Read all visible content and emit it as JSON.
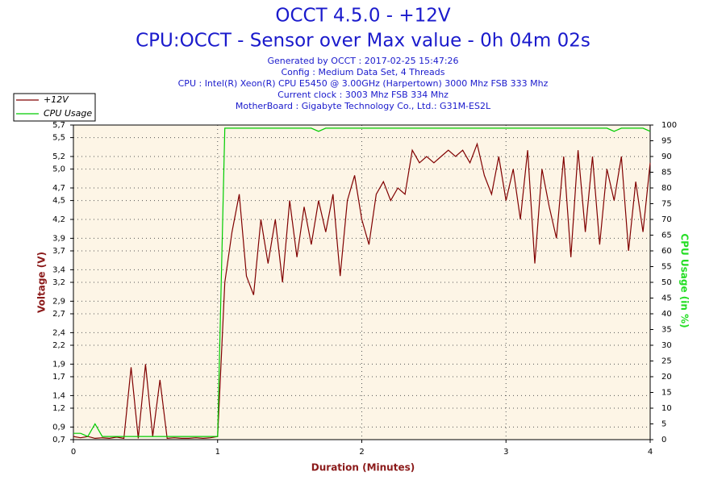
{
  "chart_data": {
    "type": "line",
    "title": "OCCT 4.5.0 - +12V",
    "subtitle": "CPU:OCCT - Sensor over Max value - 0h 04m 02s",
    "notes": [
      "Generated by OCCT : 2017-02-25 15:47:26",
      "Config : Medium Data Set, 4 Threads",
      "CPU : Intel(R) Xeon(R) CPU E5450 @ 3.00GHz (Harpertown) 3000 Mhz FSB 333 Mhz",
      "Current clock : 3003 Mhz FSB 334 Mhz",
      "MotherBoard : Gigabyte Technology Co., Ltd.: G31M-ES2L"
    ],
    "x_label": "Duration (Minutes)",
    "y_label": "Voltage (V)",
    "y2_label": "CPU Usage (in %)",
    "legend": "top-left",
    "grid": true,
    "xlim": [
      0,
      4
    ],
    "xticks": [
      0,
      1,
      2,
      3,
      4
    ],
    "ylim": [
      0.7,
      5.7
    ],
    "yticks": [
      {
        "value": 0.7,
        "label": "0,7"
      },
      {
        "value": 0.9,
        "label": "0,9"
      },
      {
        "value": 1.2,
        "label": "1,2"
      },
      {
        "value": 1.4,
        "label": "1,4"
      },
      {
        "value": 1.7,
        "label": "1,7"
      },
      {
        "value": 1.9,
        "label": "1,9"
      },
      {
        "value": 2.2,
        "label": "2,2"
      },
      {
        "value": 2.4,
        "label": "2,4"
      },
      {
        "value": 2.7,
        "label": "2,7"
      },
      {
        "value": 2.9,
        "label": "2,9"
      },
      {
        "value": 3.2,
        "label": "3,2"
      },
      {
        "value": 3.4,
        "label": "3,4"
      },
      {
        "value": 3.7,
        "label": "3,7"
      },
      {
        "value": 3.9,
        "label": "3,9"
      },
      {
        "value": 4.2,
        "label": "4,2"
      },
      {
        "value": 4.5,
        "label": "4,5"
      },
      {
        "value": 4.7,
        "label": "4,7"
      },
      {
        "value": 5.0,
        "label": "5,0"
      },
      {
        "value": 5.2,
        "label": "5,2"
      },
      {
        "value": 5.5,
        "label": "5,5"
      },
      {
        "value": 5.7,
        "label": "5,7"
      }
    ],
    "y2lim": [
      0,
      100
    ],
    "y2ticks": [
      0,
      5,
      10,
      15,
      20,
      25,
      30,
      35,
      40,
      45,
      50,
      55,
      60,
      65,
      70,
      75,
      80,
      85,
      90,
      95,
      100
    ],
    "x": [
      0,
      0.05,
      0.1,
      0.15,
      0.2,
      0.25,
      0.3,
      0.35,
      0.4,
      0.45,
      0.5,
      0.55,
      0.6,
      0.65,
      0.7,
      0.75,
      0.8,
      0.85,
      0.9,
      0.95,
      1.0,
      1.05,
      1.1,
      1.15,
      1.2,
      1.25,
      1.3,
      1.35,
      1.4,
      1.45,
      1.5,
      1.55,
      1.6,
      1.65,
      1.7,
      1.75,
      1.8,
      1.85,
      1.9,
      1.95,
      2.0,
      2.05,
      2.1,
      2.15,
      2.2,
      2.25,
      2.3,
      2.35,
      2.4,
      2.45,
      2.5,
      2.55,
      2.6,
      2.65,
      2.7,
      2.75,
      2.8,
      2.85,
      2.9,
      2.95,
      3.0,
      3.05,
      3.1,
      3.15,
      3.2,
      3.25,
      3.3,
      3.35,
      3.4,
      3.45,
      3.5,
      3.55,
      3.6,
      3.65,
      3.7,
      3.75,
      3.8,
      3.85,
      3.9,
      3.95,
      4.0
    ],
    "series": [
      {
        "name": "+12V",
        "color": "#800000",
        "values": [
          0.75,
          0.73,
          0.75,
          0.72,
          0.73,
          0.72,
          0.74,
          0.72,
          1.85,
          0.72,
          1.9,
          0.75,
          1.65,
          0.72,
          0.73,
          0.72,
          0.72,
          0.73,
          0.72,
          0.73,
          0.75,
          3.2,
          4.0,
          4.6,
          3.3,
          3.0,
          4.2,
          3.5,
          4.2,
          3.2,
          4.5,
          3.6,
          4.4,
          3.8,
          4.5,
          4.0,
          4.6,
          3.3,
          4.5,
          4.9,
          4.2,
          3.8,
          4.6,
          4.8,
          4.5,
          4.7,
          4.6,
          5.3,
          5.1,
          5.2,
          5.1,
          5.2,
          5.3,
          5.2,
          5.3,
          5.1,
          5.4,
          4.9,
          4.6,
          5.2,
          4.5,
          5.0,
          4.2,
          5.3,
          3.5,
          5.0,
          4.4,
          3.9,
          5.2,
          3.6,
          5.3,
          4.0,
          5.2,
          3.8,
          5.0,
          4.5,
          5.2,
          3.7,
          4.8,
          4.0,
          5.1
        ]
      },
      {
        "name": "CPU Usage",
        "color": "#00cc00",
        "axis": "y2",
        "values": [
          2,
          2,
          1,
          5,
          1,
          1,
          1,
          1,
          1,
          1,
          1,
          1,
          1,
          1,
          1,
          1,
          1,
          1,
          1,
          1,
          1,
          99,
          99,
          99,
          99,
          99,
          99,
          99,
          99,
          99,
          99,
          99,
          99,
          99,
          98,
          99,
          99,
          99,
          99,
          99,
          99,
          99,
          99,
          99,
          99,
          99,
          99,
          99,
          99,
          99,
          99,
          99,
          99,
          99,
          99,
          99,
          99,
          99,
          99,
          99,
          99,
          99,
          99,
          99,
          99,
          99,
          99,
          99,
          99,
          99,
          99,
          99,
          99,
          99,
          99,
          98,
          99,
          99,
          99,
          99,
          98
        ]
      }
    ]
  }
}
